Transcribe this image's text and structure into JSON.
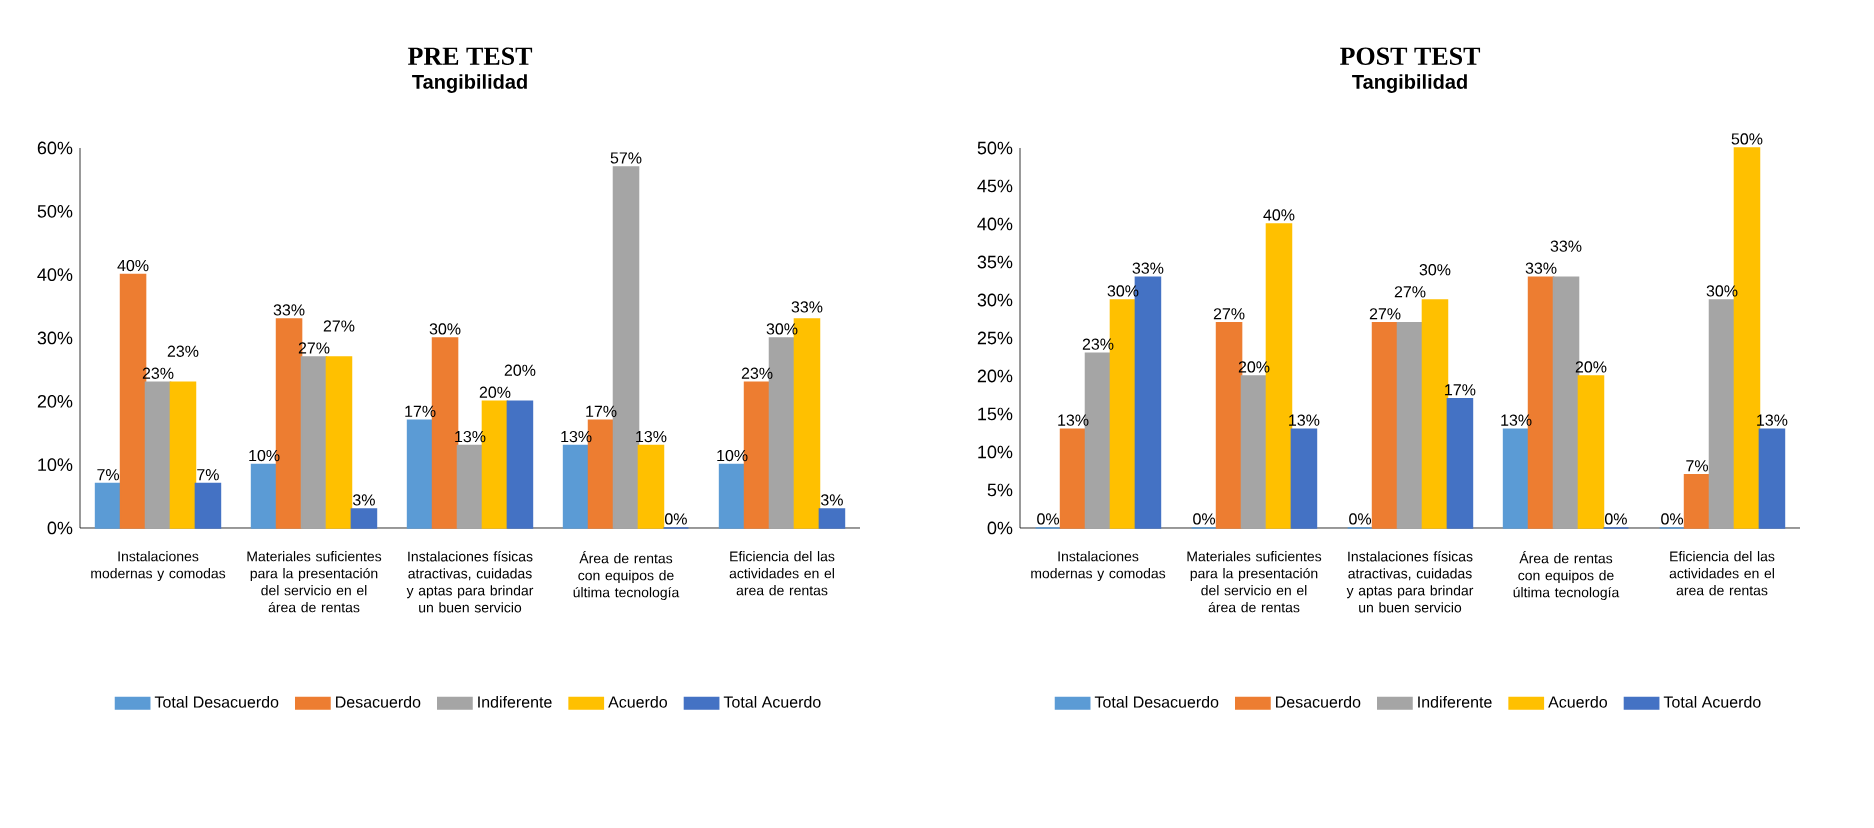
{
  "chart_data": [
    {
      "type": "bar",
      "title": "PRE TEST",
      "subtitle": "Tangibilidad",
      "legend": "bottom",
      "categories": [
        "Instalaciones modernas y comodas",
        "Materiales suficientes para la presentación del servicio en el área de rentas",
        "Instalaciones físicas atractivas, cuidadas y aptas para brindar un buen servicio",
        "Área de rentas con equipos de última tecnología",
        "Eficiencia del las actividades en el area de rentas"
      ],
      "ylim": [
        0,
        60
      ],
      "yticks": [
        {
          "value": 0,
          "label": "0%"
        },
        {
          "value": 10,
          "label": "10%"
        },
        {
          "value": 20,
          "label": "20%"
        },
        {
          "value": 30,
          "label": "30%"
        },
        {
          "value": 40,
          "label": "40%"
        },
        {
          "value": 50,
          "label": "50%"
        },
        {
          "value": 60,
          "label": "60%"
        }
      ],
      "series": [
        {
          "name": "Total Desacuerdo",
          "color": "#5b9bd5",
          "values": [
            7,
            10,
            17,
            13,
            10
          ],
          "value_labels": [
            "7%",
            "10%",
            "17%",
            "13%",
            "10%"
          ]
        },
        {
          "name": "Desacuerdo",
          "color": "#ed7d31",
          "values": [
            40,
            33,
            30,
            17,
            23
          ],
          "value_labels": [
            "40%",
            "33%",
            "30%",
            "17%",
            "23%"
          ]
        },
        {
          "name": "Indiferente",
          "color": "#a5a5a5",
          "values": [
            23,
            27,
            13,
            57,
            30
          ],
          "value_labels": [
            "23%",
            "27%",
            "13%",
            "57%",
            "30%"
          ]
        },
        {
          "name": "Acuerdo",
          "color": "#ffc000",
          "values": [
            23,
            27,
            20,
            13,
            33
          ],
          "value_labels": [
            "23%",
            "27%",
            "20%",
            "13%",
            "33%"
          ]
        },
        {
          "name": "Total Acuerdo",
          "color": "#4472c4",
          "values": [
            7,
            3,
            20,
            0,
            3
          ],
          "value_labels": [
            "7%",
            "3%",
            "20%",
            "0%",
            "3%"
          ]
        }
      ]
    },
    {
      "type": "bar",
      "title": "POST TEST",
      "subtitle": "Tangibilidad",
      "legend": "bottom",
      "categories": [
        "Instalaciones modernas y comodas",
        "Materiales suficientes para la presentación del servicio en el área de rentas",
        "Instalaciones físicas atractivas, cuidadas y aptas para brindar un buen servicio",
        "Área de rentas con equipos de última tecnología",
        "Eficiencia del las actividades en el area de rentas"
      ],
      "ylim": [
        0,
        50
      ],
      "yticks": [
        {
          "value": 0,
          "label": "0%"
        },
        {
          "value": 5,
          "label": "5%"
        },
        {
          "value": 10,
          "label": "10%"
        },
        {
          "value": 15,
          "label": "15%"
        },
        {
          "value": 20,
          "label": "20%"
        },
        {
          "value": 25,
          "label": "25%"
        },
        {
          "value": 30,
          "label": "30%"
        },
        {
          "value": 35,
          "label": "35%"
        },
        {
          "value": 40,
          "label": "40%"
        },
        {
          "value": 45,
          "label": "45%"
        },
        {
          "value": 50,
          "label": "50%"
        }
      ],
      "series": [
        {
          "name": "Total Desacuerdo",
          "color": "#5b9bd5",
          "values": [
            0,
            0,
            0,
            13,
            0
          ],
          "value_labels": [
            "0%",
            "0%",
            "0%",
            "13%",
            "0%"
          ]
        },
        {
          "name": "Desacuerdo",
          "color": "#ed7d31",
          "values": [
            13,
            27,
            27,
            33,
            7
          ],
          "value_labels": [
            "13%",
            "27%",
            "27%",
            "33%",
            "7%"
          ]
        },
        {
          "name": "Indiferente",
          "color": "#a5a5a5",
          "values": [
            23,
            20,
            27,
            33,
            30
          ],
          "value_labels": [
            "23%",
            "20%",
            "27%",
            "33%",
            "30%"
          ]
        },
        {
          "name": "Acuerdo",
          "color": "#ffc000",
          "values": [
            30,
            40,
            30,
            20,
            50
          ],
          "value_labels": [
            "30%",
            "40%",
            "30%",
            "20%",
            "50%"
          ]
        },
        {
          "name": "Total Acuerdo",
          "color": "#4472c4",
          "values": [
            33,
            13,
            17,
            0,
            13
          ],
          "value_labels": [
            "33%",
            "13%",
            "17%",
            "0%",
            "13%"
          ]
        }
      ]
    }
  ]
}
